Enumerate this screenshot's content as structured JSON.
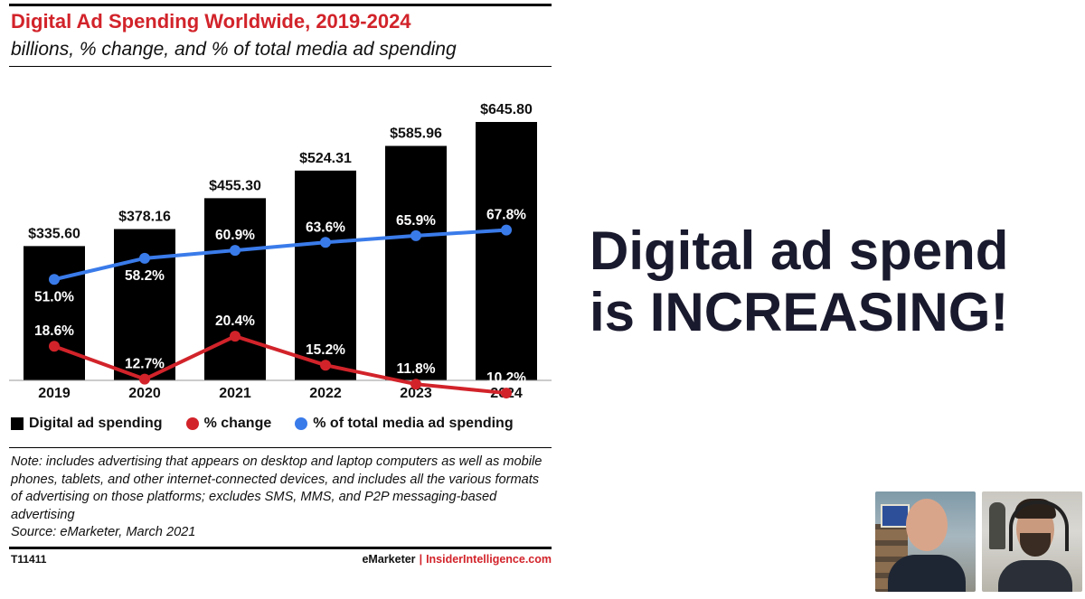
{
  "chart_data": {
    "type": "bar",
    "title": "Digital Ad Spending Worldwide, 2019-2024",
    "subtitle": "billions, % change, and % of total media ad spending",
    "categories": [
      "2019",
      "2020",
      "2021",
      "2022",
      "2023",
      "2024"
    ],
    "series": [
      {
        "name": "Digital ad spending",
        "type": "bar",
        "values": [
          335.6,
          378.16,
          455.3,
          524.31,
          585.96,
          645.8
        ],
        "labels": [
          "$335.60",
          "$378.16",
          "$455.30",
          "$524.31",
          "$585.96",
          "$645.80"
        ],
        "color": "#000000"
      },
      {
        "name": "% change",
        "type": "line",
        "values": [
          18.6,
          12.7,
          20.4,
          15.2,
          11.8,
          10.2
        ],
        "labels": [
          "18.6%",
          "12.7%",
          "20.4%",
          "15.2%",
          "11.8%",
          "10.2%"
        ],
        "color": "#d2232a"
      },
      {
        "name": "% of total media ad spending",
        "type": "line",
        "values": [
          51.0,
          58.2,
          60.9,
          63.6,
          65.9,
          67.8
        ],
        "labels": [
          "51.0%",
          "58.2%",
          "60.9%",
          "63.6%",
          "65.9%",
          "67.8%"
        ],
        "color": "#3a7bea"
      }
    ],
    "ylim": [
      0,
      700
    ],
    "grid": false,
    "legend_position": "bottom",
    "note": "Note: includes advertising that appears on desktop and laptop computers as well as mobile phones, tablets, and other internet-connected devices, and includes all the various formats of advertising on those platforms; excludes SMS, MMS, and P2P messaging-based advertising",
    "source": "Source: eMarketer, March 2021",
    "chart_id": "T11411",
    "brand_left": "eMarketer",
    "brand_sep": "|",
    "brand_right": "InsiderIntelligence.com"
  },
  "slide": {
    "headline_line1": "Digital ad spend",
    "headline_line2": "is INCREASING!"
  },
  "video_tiles": [
    {
      "icon": "presenter-video-icon"
    },
    {
      "icon": "participant-video-icon"
    }
  ]
}
